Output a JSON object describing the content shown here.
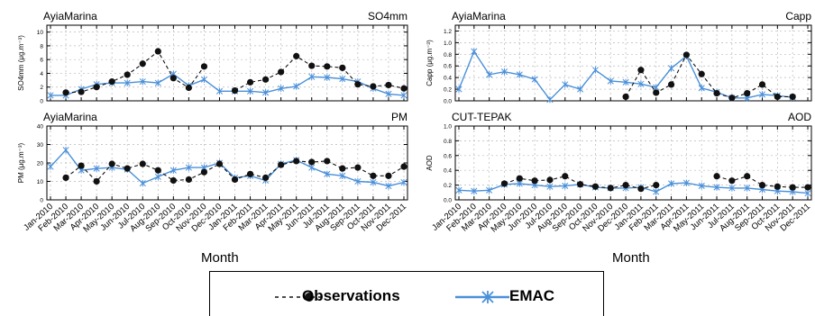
{
  "colors": {
    "obs": "#111111",
    "emac": "#4a90d9",
    "grid": "#b8b8b8"
  },
  "months": [
    "Jan-2010",
    "Feb-2010",
    "Mar-2010",
    "Apr-2010",
    "May-2010",
    "Jun-2010",
    "Jul-2010",
    "Aug-2010",
    "Sep-2010",
    "Oct-2010",
    "Nov-2010",
    "Dec-2010",
    "Jan-2011",
    "Feb-2011",
    "Mar-2011",
    "Apr-2011",
    "May-2011",
    "Jun-2011",
    "Jul-2011",
    "Aug-2011",
    "Sep-2011",
    "Oct-2011",
    "Nov-2011",
    "Dec-2011"
  ],
  "xtitle": "Month",
  "legend": {
    "obs_label": "Observations",
    "emac_label": "EMAC"
  },
  "chart_data": [
    {
      "type": "line",
      "site": "AyiaMarina",
      "variable": "SO4mm",
      "ylabel": "SO4mm (μg.m⁻³)",
      "ylim": [
        0,
        11
      ],
      "yticks": [
        0,
        2,
        4,
        6,
        8,
        10
      ],
      "grid": true,
      "series": [
        {
          "name": "Observations",
          "values": [
            null,
            1.2,
            1.3,
            2.0,
            2.8,
            3.8,
            5.4,
            7.2,
            3.3,
            1.9,
            5.0,
            null,
            1.5,
            2.7,
            3.1,
            4.2,
            6.5,
            5.1,
            5.0,
            4.8,
            2.4,
            2.1,
            2.3,
            1.8
          ]
        },
        {
          "name": "EMAC",
          "values": [
            0.8,
            0.8,
            1.7,
            2.4,
            2.6,
            2.6,
            2.8,
            2.6,
            3.9,
            2.2,
            3.1,
            1.4,
            1.4,
            1.4,
            1.2,
            1.8,
            2.1,
            3.5,
            3.4,
            3.2,
            2.8,
            1.8,
            1.0,
            0.8
          ]
        }
      ]
    },
    {
      "type": "line",
      "site": "AyiaMarina",
      "variable": "Capp",
      "ylabel": "Capp (μg.m⁻³)",
      "ylim": [
        0,
        1.3
      ],
      "yticks": [
        0,
        0.2,
        0.4,
        0.6,
        0.8,
        1.0,
        1.2
      ],
      "grid": true,
      "series": [
        {
          "name": "Observations",
          "values": [
            null,
            null,
            null,
            null,
            null,
            null,
            null,
            null,
            null,
            null,
            null,
            0.07,
            0.53,
            0.14,
            0.28,
            0.79,
            0.46,
            0.13,
            0.05,
            0.13,
            0.28,
            0.07,
            0.07,
            null
          ]
        },
        {
          "name": "EMAC",
          "values": [
            0.2,
            0.85,
            0.45,
            0.5,
            0.45,
            0.37,
            0.02,
            0.28,
            0.2,
            0.53,
            0.34,
            0.32,
            0.29,
            0.23,
            0.56,
            0.77,
            0.22,
            0.15,
            0.05,
            0.05,
            0.11,
            0.09,
            0.06,
            null
          ]
        }
      ]
    },
    {
      "type": "line",
      "site": "AyiaMarina",
      "variable": "PM",
      "ylabel": "PM (μg.m⁻³)",
      "ylim": [
        0,
        40
      ],
      "yticks": [
        0,
        10,
        20,
        30,
        40
      ],
      "grid": true,
      "series": [
        {
          "name": "Observations",
          "values": [
            null,
            12.0,
            18.5,
            10.0,
            19.5,
            17.0,
            19.5,
            16.0,
            10.5,
            11.0,
            15.0,
            19.5,
            11.0,
            14.0,
            12.0,
            19.0,
            21.0,
            20.5,
            21.0,
            17.0,
            17.5,
            13.0,
            13.0,
            18.0
          ]
        },
        {
          "name": "EMAC",
          "values": [
            18.0,
            27.0,
            16.0,
            17.0,
            17.5,
            16.5,
            9.0,
            12.5,
            16.0,
            17.5,
            17.5,
            20.0,
            12.0,
            13.0,
            10.5,
            19.5,
            21.5,
            17.5,
            14.0,
            13.0,
            10.0,
            9.5,
            7.5,
            9.5
          ]
        }
      ]
    },
    {
      "type": "line",
      "site": "CUT-TEPAK",
      "variable": "AOD",
      "ylabel": "AOD",
      "ylim": [
        0,
        1.0
      ],
      "yticks": [
        0,
        0.2,
        0.4,
        0.6,
        0.8,
        1.0
      ],
      "grid": true,
      "series": [
        {
          "name": "Observations",
          "values": [
            null,
            null,
            null,
            0.22,
            0.29,
            0.26,
            0.27,
            0.32,
            0.21,
            0.18,
            0.16,
            0.2,
            0.15,
            0.2,
            null,
            null,
            null,
            0.32,
            0.26,
            0.32,
            0.2,
            0.18,
            0.17,
            0.17
          ]
        },
        {
          "name": "EMAC",
          "values": [
            0.13,
            0.12,
            0.13,
            0.21,
            0.22,
            0.2,
            0.18,
            0.19,
            0.21,
            0.17,
            0.16,
            0.16,
            0.17,
            0.11,
            0.22,
            0.23,
            0.19,
            0.17,
            0.16,
            0.16,
            0.14,
            0.12,
            0.11,
            0.09
          ]
        }
      ]
    }
  ]
}
